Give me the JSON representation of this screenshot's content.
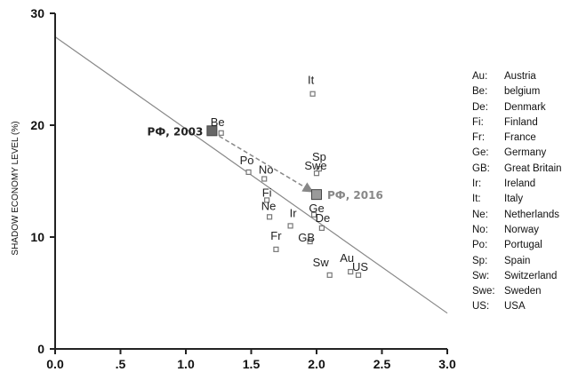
{
  "chart_data": {
    "type": "scatter",
    "ylabel": "SHADOW ECONOMY LEVEL (%)",
    "xlabel": "",
    "xlim": [
      0,
      3
    ],
    "ylim": [
      0,
      30
    ],
    "x_ticks": [
      "0.0",
      ".5",
      "1.0",
      "1.5",
      "2.0",
      "2.5",
      "3.0"
    ],
    "y_ticks": [
      "0",
      "10",
      "20",
      "30"
    ],
    "points": [
      {
        "label": "It",
        "x": 1.97,
        "y": 22.8
      },
      {
        "label": "Be",
        "x": 1.27,
        "y": 19.3
      },
      {
        "label": "Po",
        "x": 1.48,
        "y": 15.8
      },
      {
        "label": "No",
        "x": 1.6,
        "y": 15.2
      },
      {
        "label": "Sp",
        "x": 2.02,
        "y": 16.1
      },
      {
        "label": "Swe",
        "x": 2.0,
        "y": 15.7
      },
      {
        "label": "Fi",
        "x": 1.62,
        "y": 13.3
      },
      {
        "label": "Ne",
        "x": 1.64,
        "y": 11.8
      },
      {
        "label": "Ge",
        "x": 1.98,
        "y": 12.0
      },
      {
        "label": "Ir",
        "x": 1.8,
        "y": 11.0
      },
      {
        "label": "De",
        "x": 2.04,
        "y": 10.8
      },
      {
        "label": "GB",
        "x": 1.95,
        "y": 9.6
      },
      {
        "label": "Fr",
        "x": 1.69,
        "y": 8.9
      },
      {
        "label": "Sw",
        "x": 2.1,
        "y": 6.6
      },
      {
        "label": "Au",
        "x": 2.26,
        "y": 6.9
      },
      {
        "label": "US",
        "x": 2.32,
        "y": 6.6
      }
    ],
    "highlighted_points": [
      {
        "label": "РФ, 2003",
        "x": 1.2,
        "y": 19.5,
        "color": "#666666"
      },
      {
        "label": "РФ, 2016",
        "x": 2.0,
        "y": 13.8,
        "color": "#9a9a9a"
      }
    ],
    "trend_line": {
      "x": [
        0.0,
        3.0
      ],
      "y": [
        27.9,
        3.2
      ]
    },
    "legend": [
      {
        "abbr": "Au:",
        "name": "Austria"
      },
      {
        "abbr": "Be:",
        "name": "belgium"
      },
      {
        "abbr": "De:",
        "name": "Denmark"
      },
      {
        "abbr": "Fi:",
        "name": "Finland"
      },
      {
        "abbr": "Fr:",
        "name": "France"
      },
      {
        "abbr": "Ge:",
        "name": "Germany"
      },
      {
        "abbr": "GB:",
        "name": "Great Britain"
      },
      {
        "abbr": "Ir:",
        "name": "Ireland"
      },
      {
        "abbr": "It:",
        "name": "Italy"
      },
      {
        "abbr": "Ne:",
        "name": "Netherlands"
      },
      {
        "abbr": "No:",
        "name": "Norway"
      },
      {
        "abbr": "Po:",
        "name": "Portugal"
      },
      {
        "abbr": "Sp:",
        "name": "Spain"
      },
      {
        "abbr": "Sw:",
        "name": "Switzerland"
      },
      {
        "abbr": "Swe:",
        "name": "Sweden"
      },
      {
        "abbr": "US:",
        "name": "USA"
      }
    ],
    "legend_placement": "right",
    "grid": false,
    "colors": {
      "axis": "#222222",
      "trend": "#888888",
      "marker_edge": "#777777",
      "label": "#222222",
      "arrow": "#888888"
    }
  }
}
